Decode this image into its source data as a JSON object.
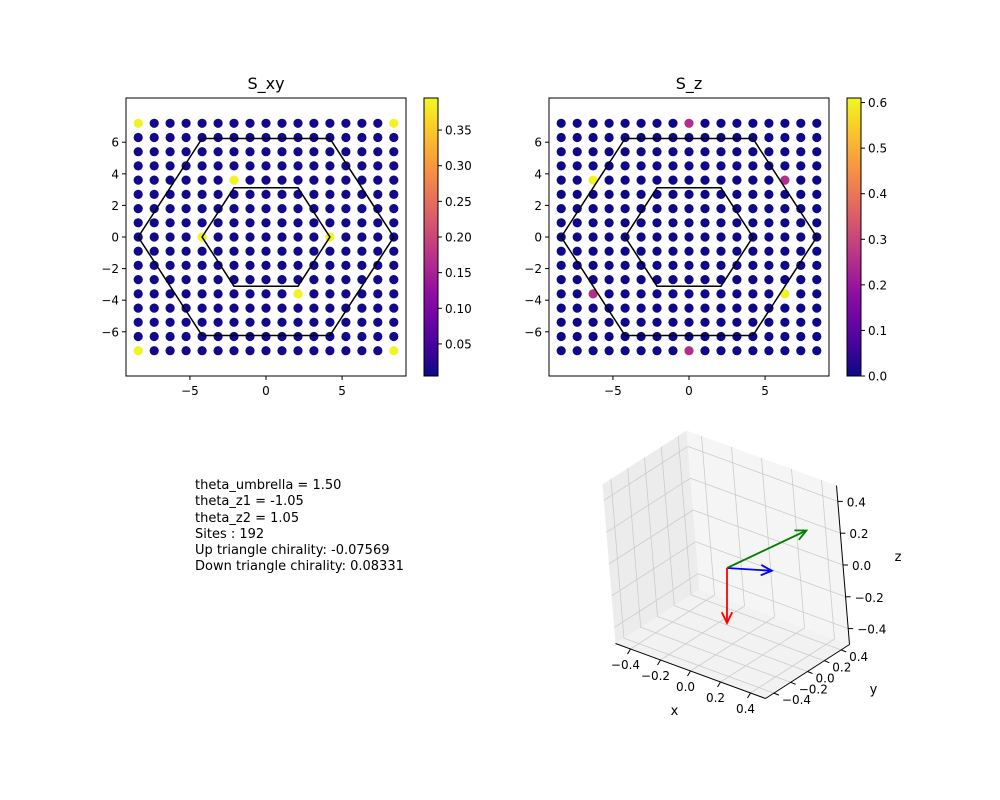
{
  "chart_data": [
    {
      "type": "scatter",
      "title": "S_xy",
      "xlim": [
        -9.2,
        9.2
      ],
      "ylim": [
        -8.8,
        8.8
      ],
      "xticks": [
        -5,
        0,
        5
      ],
      "yticks": [
        -6,
        -4,
        -2,
        0,
        2,
        4,
        6
      ],
      "lattice": {
        "x_step": 1.05,
        "y_step": 0.9,
        "x_half_count": 8,
        "y_half_count": 8
      },
      "base_value": 0.01,
      "highlights": [
        {
          "x": -8.4,
          "y": 7.2,
          "value": 0.39
        },
        {
          "x": 8.4,
          "y": 7.2,
          "value": 0.39
        },
        {
          "x": -8.4,
          "y": -7.2,
          "value": 0.39
        },
        {
          "x": 8.4,
          "y": -7.2,
          "value": 0.39
        },
        {
          "x": -2.1,
          "y": 3.6,
          "value": 0.39
        },
        {
          "x": 2.1,
          "y": -3.6,
          "value": 0.39
        },
        {
          "x": -4.2,
          "y": 0.0,
          "value": 0.39
        },
        {
          "x": 4.2,
          "y": 0.0,
          "value": 0.39
        }
      ],
      "colorbar": {
        "min": 0.005,
        "max": 0.395,
        "ticks": [
          0.05,
          0.1,
          0.15,
          0.2,
          0.25,
          0.3,
          0.35
        ]
      },
      "hexagons": [
        8.4,
        4.2
      ]
    },
    {
      "type": "scatter",
      "title": "S_z",
      "xlim": [
        -9.2,
        9.2
      ],
      "ylim": [
        -8.8,
        8.8
      ],
      "xticks": [
        -5,
        0,
        5
      ],
      "yticks": [
        -6,
        -4,
        -2,
        0,
        2,
        4,
        6
      ],
      "lattice": {
        "x_step": 1.05,
        "y_step": 0.9,
        "x_half_count": 8,
        "y_half_count": 8
      },
      "base_value": 0.0,
      "highlights": [
        {
          "x": -6.3,
          "y": 3.6,
          "value": 0.6
        },
        {
          "x": 6.3,
          "y": -3.6,
          "value": 0.6
        },
        {
          "x": 6.3,
          "y": 3.6,
          "value": 0.25
        },
        {
          "x": -6.3,
          "y": -3.6,
          "value": 0.25
        },
        {
          "x": 0.0,
          "y": 7.2,
          "value": 0.25
        },
        {
          "x": 0.0,
          "y": -7.2,
          "value": 0.25
        }
      ],
      "colorbar": {
        "min": 0.0,
        "max": 0.61,
        "ticks": [
          0.0,
          0.1,
          0.2,
          0.3,
          0.4,
          0.5,
          0.6
        ]
      },
      "hexagons": [
        8.4,
        4.2
      ]
    },
    {
      "type": "vector3d",
      "xlabel": "x",
      "ylabel": "y",
      "zlabel": "z",
      "xticks": [
        -0.4,
        -0.2,
        0.0,
        0.2,
        0.4
      ],
      "yticks": [
        -0.4,
        -0.2,
        0.0,
        0.2,
        0.4
      ],
      "zticks": [
        -0.4,
        -0.2,
        0.0,
        0.2,
        0.4
      ],
      "vectors": [
        {
          "color": "#0000ff",
          "dx": 0.35,
          "dy": 0.0,
          "dz": 0.0
        },
        {
          "color": "#008000",
          "dx": 0.5,
          "dy": 0.35,
          "dz": 0.25
        },
        {
          "color": "#ff0000",
          "dx": 0.0,
          "dy": 0.0,
          "dz": -0.5
        }
      ]
    }
  ],
  "info": [
    "theta_umbrella = 1.50",
    "theta_z1 = -1.05",
    "theta_z2 = 1.05",
    "Sites : 192",
    "Up triangle chirality: -0.07569",
    "Down triangle chirality: 0.08331"
  ]
}
